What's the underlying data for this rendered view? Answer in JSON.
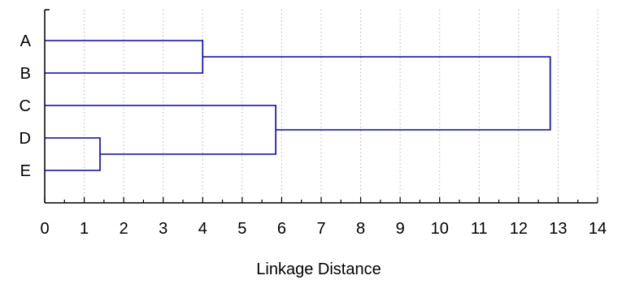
{
  "chart_data": {
    "type": "dendrogram",
    "orientation": "horizontal",
    "xlabel": "Linkage Distance",
    "xlim": [
      0,
      14
    ],
    "x_ticks": [
      "0",
      "1",
      "2",
      "3",
      "4",
      "5",
      "6",
      "7",
      "8",
      "9",
      "10",
      "11",
      "12",
      "13",
      "14"
    ],
    "minor_tick_step": 0.5,
    "grid": true,
    "leaves": [
      "A",
      "B",
      "C",
      "D",
      "E"
    ],
    "merges": [
      {
        "members": [
          "D",
          "E"
        ],
        "distance": 1.4
      },
      {
        "members": [
          "A",
          "B"
        ],
        "distance": 4.0
      },
      {
        "members": [
          "C",
          "D+E"
        ],
        "distance": 5.85
      },
      {
        "members": [
          "A+B",
          "C+D+E"
        ],
        "distance": 12.8
      }
    ],
    "line_color": "#0000c8",
    "grid_color": "#b4b4b4"
  }
}
